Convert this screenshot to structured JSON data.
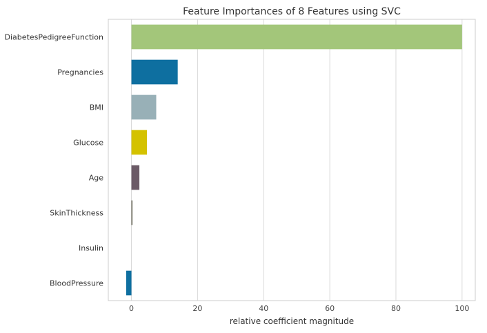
{
  "chart_data": {
    "type": "bar",
    "orientation": "horizontal",
    "title": "Feature Importances of 8 Features using SVC",
    "xlabel": "relative coefficient magnitude",
    "ylabel": "",
    "xlim": [
      -7,
      104
    ],
    "xticks": [
      0,
      20,
      40,
      60,
      80,
      100
    ],
    "grid": true,
    "legend": "none",
    "categories": [
      "DiabetesPedigreeFunction",
      "Pregnancies",
      "BMI",
      "Glucose",
      "Age",
      "SkinThickness",
      "Insulin",
      "BloodPressure"
    ],
    "values": [
      100,
      14,
      7.5,
      4.7,
      2.4,
      0.3,
      0,
      -1.6
    ],
    "colors": [
      "#a3c67a",
      "#0e6fa0",
      "#98b0b7",
      "#d4c200",
      "#6b5a66",
      "#5b5a4a",
      "#0e6fa0",
      "#0e6fa0"
    ]
  }
}
